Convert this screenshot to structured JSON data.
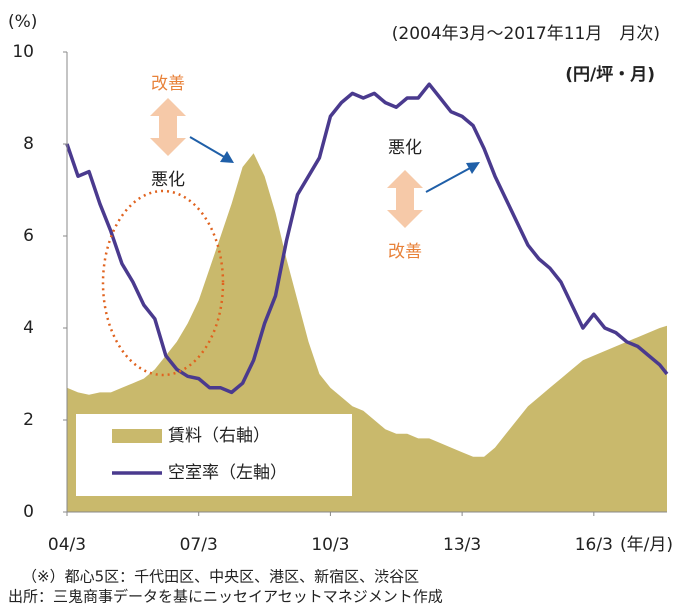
{
  "chart_data": {
    "type": "line",
    "y_unit_label": "(%)",
    "subtitle": "(2004年3月～2017年11月　月次)",
    "y2_unit_label": "(円/坪・月)",
    "x_unit_label": "(年/月)",
    "notes": [
      "（※）都心5区：千代田区、中央区、港区、新宿区、渋谷区",
      "出所：三鬼商事データを基にニッセイアセットマネジメント作成"
    ],
    "annotations": [
      "改善",
      "悪化",
      "悪化",
      "改善"
    ],
    "x": [
      0,
      3,
      6,
      9,
      12,
      15,
      18,
      21,
      24,
      27,
      30,
      33,
      36,
      39,
      42,
      45,
      48,
      51,
      54,
      57,
      60,
      63,
      66,
      69,
      72,
      75,
      78,
      81,
      84,
      87,
      90,
      93,
      96,
      99,
      102,
      105,
      108,
      111,
      114,
      117,
      120,
      123,
      126,
      129,
      132,
      135,
      138,
      141,
      144,
      147,
      150,
      153,
      156,
      159,
      162,
      164
    ],
    "xlim": [
      0,
      164
    ],
    "xticks": [
      {
        "value": 0,
        "label": "04/3"
      },
      {
        "value": 36,
        "label": "07/3"
      },
      {
        "value": 72,
        "label": "10/3"
      },
      {
        "value": 108,
        "label": "13/3"
      },
      {
        "value": 144,
        "label": "16/3"
      }
    ],
    "ylim": [
      0,
      10
    ],
    "yticks": [
      0,
      2,
      4,
      6,
      8,
      10
    ],
    "y2lim": [
      13000,
      26000
    ],
    "series": [
      {
        "name": "賃料（右軸）",
        "type": "area",
        "axis": "y2",
        "color": "#c9b96c",
        "values": [
          16510,
          16380,
          16315,
          16380,
          16380,
          16510,
          16640,
          16770,
          17030,
          17420,
          17810,
          18330,
          18980,
          19890,
          20800,
          21710,
          22750,
          23140,
          22490,
          21450,
          20150,
          18980,
          17810,
          16900,
          16510,
          16250,
          15990,
          15860,
          15600,
          15340,
          15210,
          15210,
          15080,
          15080,
          14950,
          14820,
          14690,
          14560,
          14560,
          14820,
          15210,
          15600,
          15990,
          16250,
          16510,
          16770,
          17030,
          17290,
          17420,
          17550,
          17680,
          17810,
          17940,
          18070,
          18200,
          18265
        ]
      },
      {
        "name": "空室率（左軸）",
        "type": "line",
        "color": "#4a3a8e",
        "values": [
          8.0,
          7.3,
          7.4,
          6.7,
          6.1,
          5.4,
          5.0,
          4.5,
          4.2,
          3.4,
          3.1,
          2.95,
          2.9,
          2.7,
          2.7,
          2.6,
          2.8,
          3.3,
          4.1,
          4.7,
          5.9,
          6.9,
          7.3,
          7.7,
          8.6,
          8.9,
          9.1,
          9.0,
          9.1,
          8.9,
          8.8,
          9.0,
          9.0,
          9.3,
          9.0,
          8.7,
          8.6,
          8.4,
          7.9,
          7.3,
          6.8,
          6.3,
          5.8,
          5.5,
          5.3,
          5.0,
          4.5,
          4.0,
          4.3,
          4.0,
          3.9,
          3.7,
          3.6,
          3.4,
          3.2,
          3.0
        ]
      }
    ]
  }
}
